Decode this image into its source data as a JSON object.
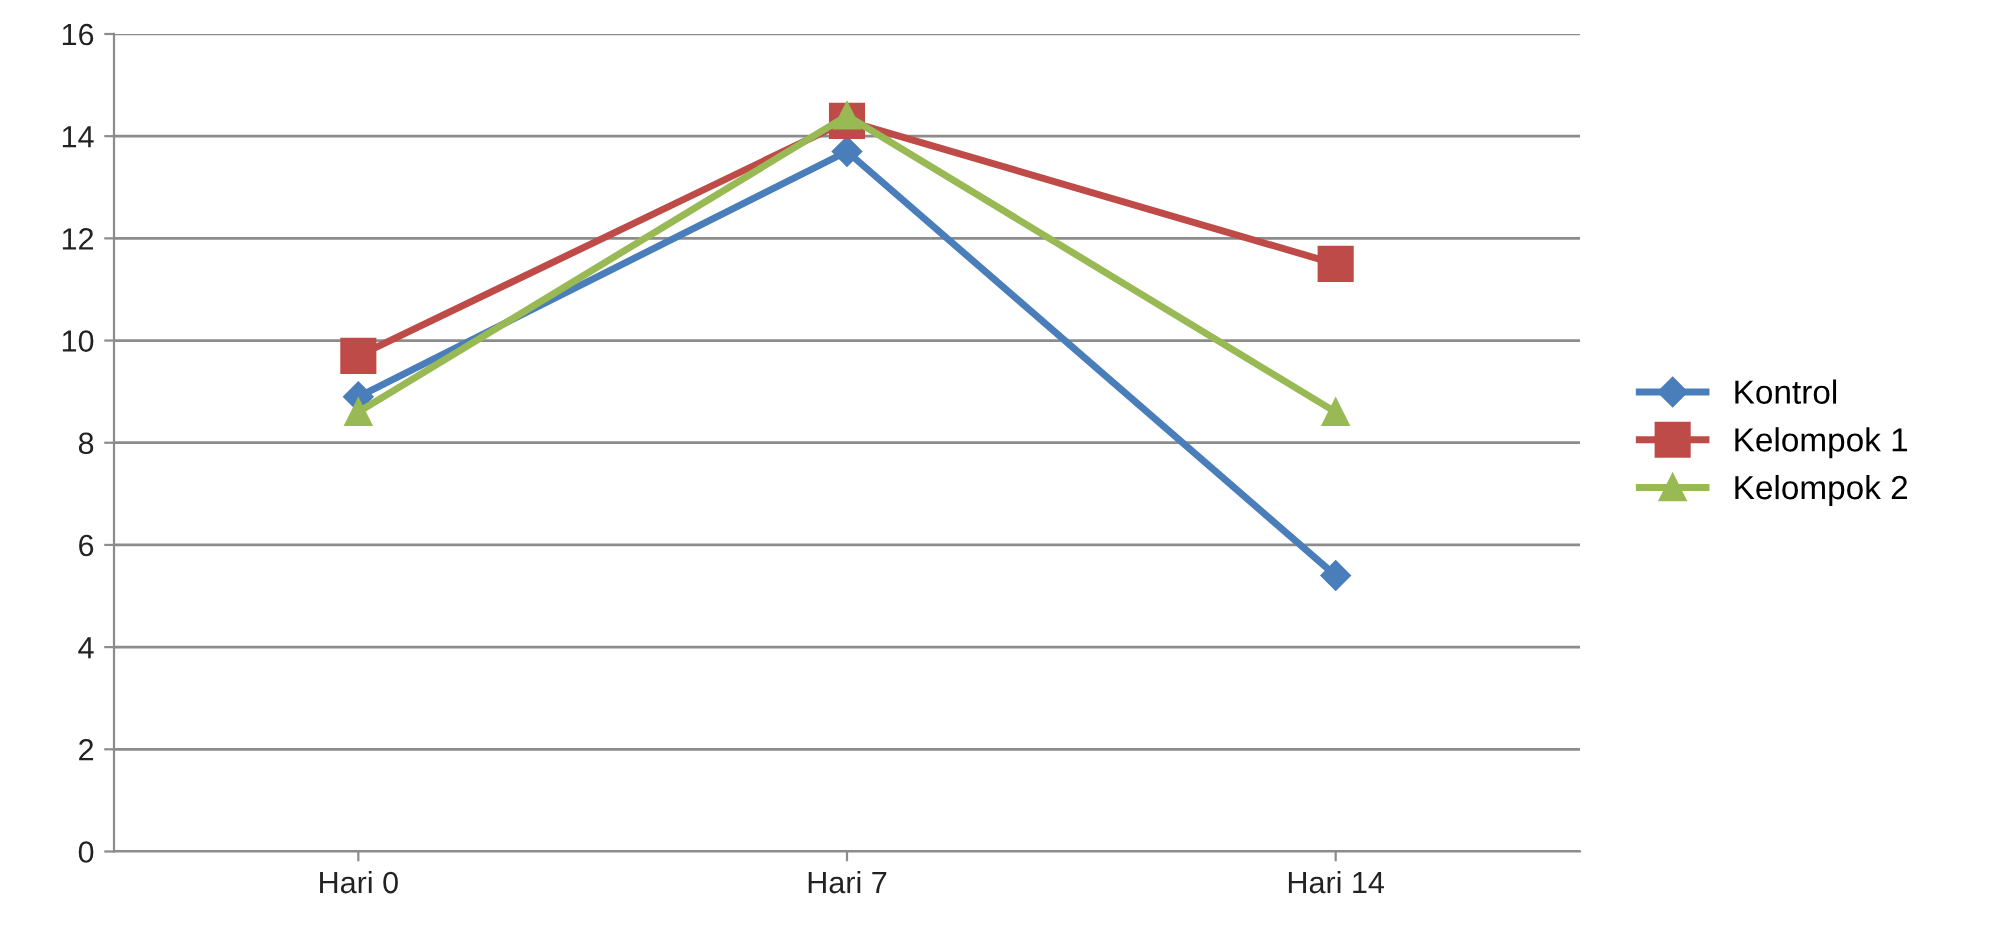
{
  "chart_data": {
    "type": "line",
    "categories": [
      "Hari 0",
      "Hari 7",
      "Hari 14"
    ],
    "series": [
      {
        "name": "Kontrol",
        "color": "#4a7ebb",
        "marker": "diamond",
        "values": [
          8.9,
          13.7,
          5.4
        ]
      },
      {
        "name": "Kelompok 1",
        "color": "#be4b48",
        "marker": "square",
        "values": [
          9.7,
          14.3,
          11.5
        ]
      },
      {
        "name": "Kelompok 2",
        "color": "#98b954",
        "marker": "triangle",
        "values": [
          8.6,
          14.4,
          8.6
        ]
      }
    ],
    "ylim": [
      0,
      16
    ],
    "yticks": [
      0,
      2,
      4,
      6,
      8,
      10,
      12,
      14,
      16
    ],
    "grid": "y",
    "legend": "right"
  }
}
